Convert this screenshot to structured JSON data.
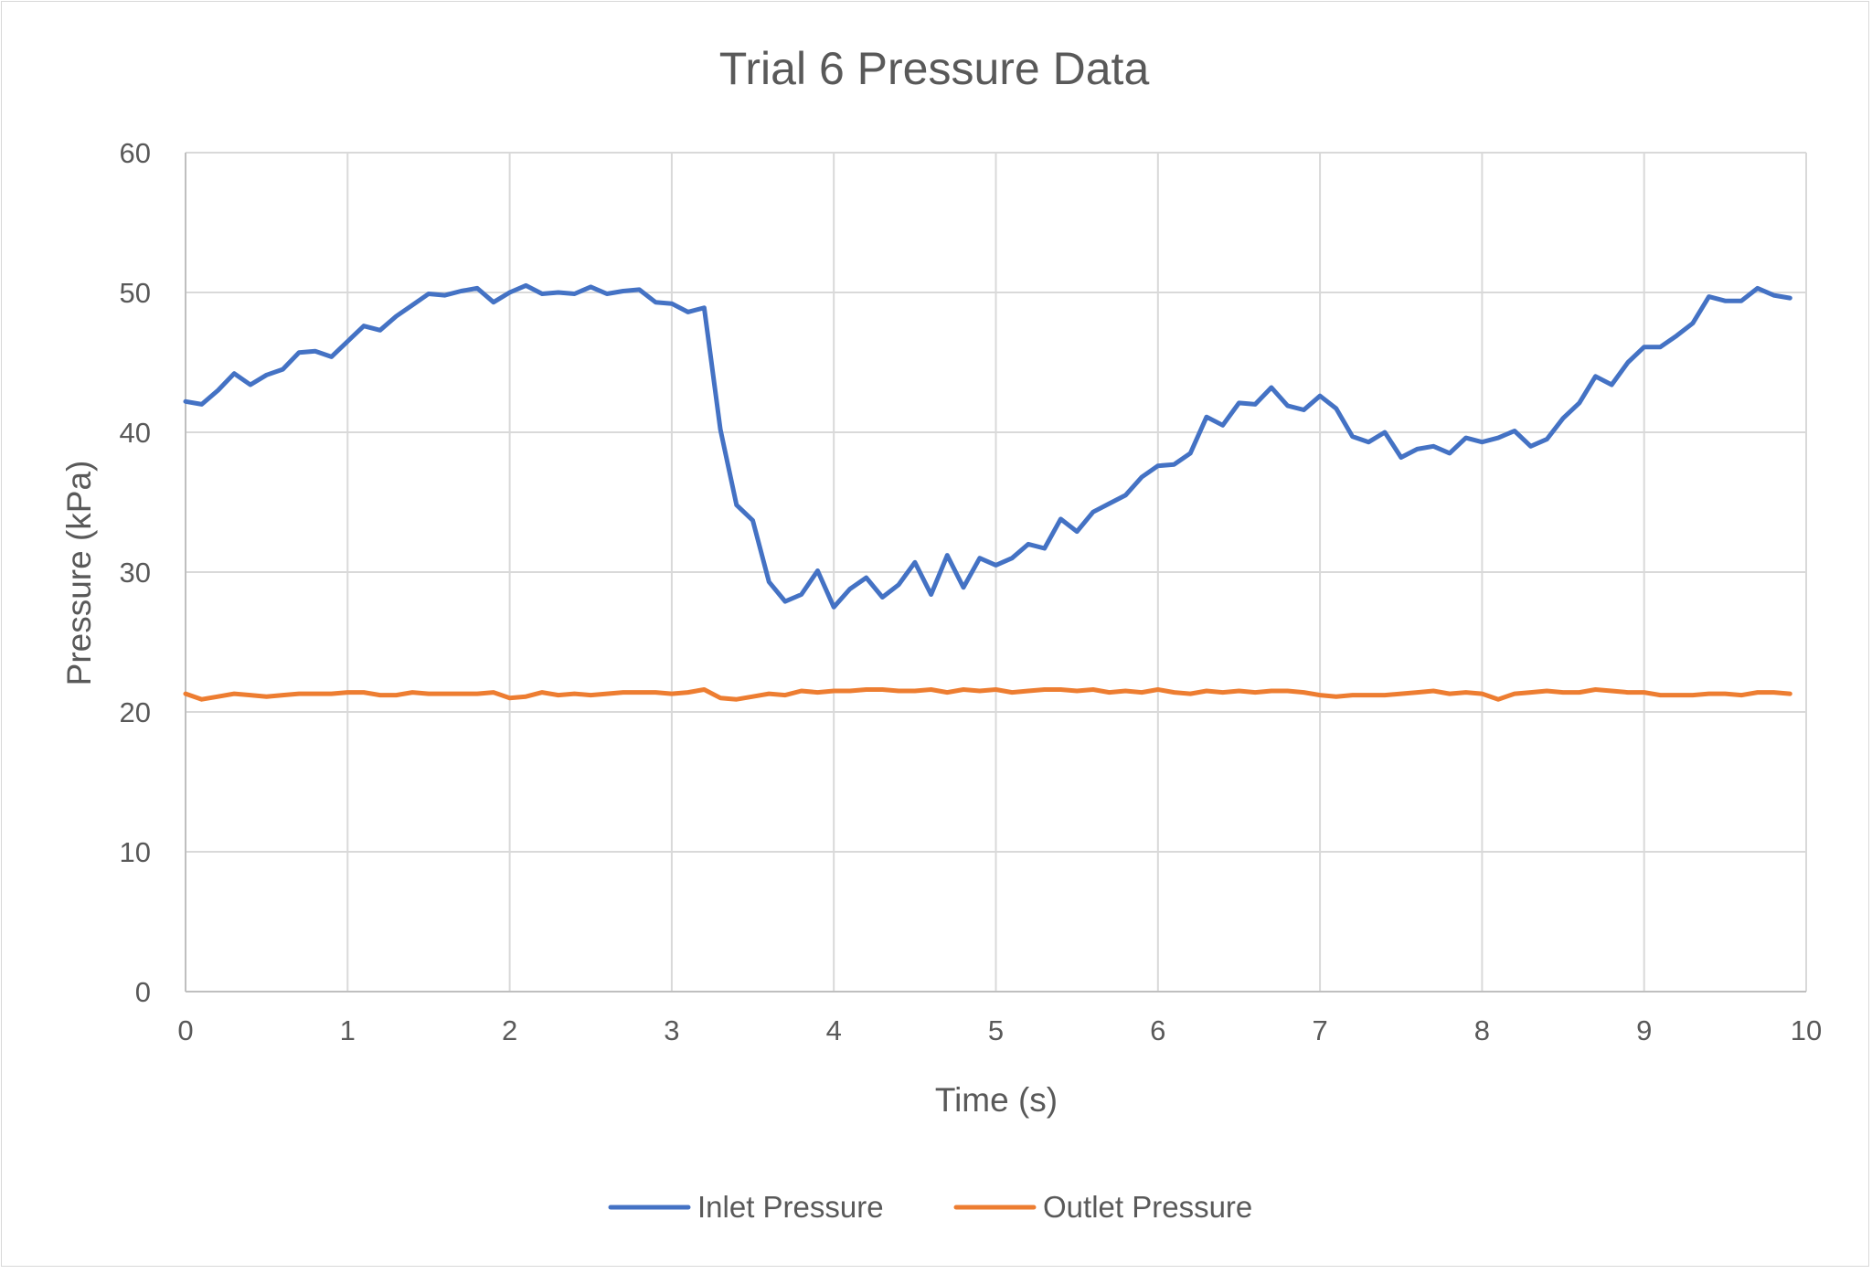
{
  "chart_data": {
    "type": "line",
    "title": "Trial 6 Pressure Data",
    "xlabel": "Time (s)",
    "ylabel": "Pressure (kPa)",
    "xlim": [
      0,
      10
    ],
    "ylim": [
      0,
      60
    ],
    "x_ticks": [
      "0",
      "1",
      "2",
      "3",
      "4",
      "5",
      "6",
      "7",
      "8",
      "9",
      "10"
    ],
    "y_ticks": [
      "0",
      "10",
      "20",
      "30",
      "40",
      "50",
      "60"
    ],
    "grid": true,
    "legend_position": "bottom",
    "x": [
      0,
      0.1,
      0.2,
      0.3,
      0.4,
      0.5,
      0.6,
      0.7,
      0.8,
      0.9,
      1,
      1.1,
      1.2,
      1.3,
      1.4,
      1.5,
      1.6,
      1.7,
      1.8,
      1.9,
      2,
      2.1,
      2.2,
      2.3,
      2.4,
      2.5,
      2.6,
      2.7,
      2.8,
      2.9,
      3,
      3.1,
      3.2,
      3.3,
      3.4,
      3.5,
      3.6,
      3.7,
      3.8,
      3.9,
      4,
      4.1,
      4.2,
      4.3,
      4.4,
      4.5,
      4.6,
      4.7,
      4.8,
      4.9,
      5,
      5.1,
      5.2,
      5.3,
      5.4,
      5.5,
      5.6,
      5.7,
      5.8,
      5.9,
      6,
      6.1,
      6.2,
      6.3,
      6.4,
      6.5,
      6.6,
      6.7,
      6.8,
      6.9,
      7,
      7.1,
      7.2,
      7.3,
      7.4,
      7.5,
      7.6,
      7.7,
      7.8,
      7.9,
      8,
      8.1,
      8.2,
      8.3,
      8.4,
      8.5,
      8.6,
      8.7,
      8.8,
      8.9,
      9,
      9.1,
      9.2,
      9.3,
      9.4,
      9.5,
      9.6,
      9.7,
      9.8,
      9.9
    ],
    "series": [
      {
        "name": "Inlet Pressure",
        "color": "#4472c4",
        "values": [
          42.2,
          42.0,
          43.0,
          44.2,
          43.4,
          44.1,
          44.5,
          45.7,
          45.8,
          45.4,
          46.5,
          47.6,
          47.3,
          48.3,
          49.1,
          49.9,
          49.8,
          50.1,
          50.3,
          49.3,
          50.0,
          50.5,
          49.9,
          50.0,
          49.9,
          50.4,
          49.9,
          50.1,
          50.2,
          49.3,
          49.2,
          48.6,
          48.9,
          40.2,
          34.8,
          33.7,
          29.3,
          27.9,
          28.4,
          30.1,
          27.5,
          28.8,
          29.6,
          28.2,
          29.1,
          30.7,
          28.4,
          31.2,
          28.9,
          31.0,
          30.5,
          31.0,
          32.0,
          31.7,
          33.8,
          32.9,
          34.3,
          34.9,
          35.5,
          36.8,
          37.6,
          37.7,
          38.5,
          41.1,
          40.5,
          42.1,
          42.0,
          43.2,
          41.9,
          41.6,
          42.6,
          41.7,
          39.7,
          39.3,
          40.0,
          38.2,
          38.8,
          39.0,
          38.5,
          39.6,
          39.3,
          39.6,
          40.1,
          39.0,
          39.5,
          41.0,
          42.1,
          44.0,
          43.4,
          45.0,
          46.1,
          46.1,
          46.9,
          47.8,
          49.7,
          49.4,
          49.4,
          50.3,
          49.8,
          49.6
        ]
      },
      {
        "name": "Outlet Pressure",
        "color": "#ed7d31",
        "values": [
          21.3,
          20.9,
          21.1,
          21.3,
          21.2,
          21.1,
          21.2,
          21.3,
          21.3,
          21.3,
          21.4,
          21.4,
          21.2,
          21.2,
          21.4,
          21.3,
          21.3,
          21.3,
          21.3,
          21.4,
          21.0,
          21.1,
          21.4,
          21.2,
          21.3,
          21.2,
          21.3,
          21.4,
          21.4,
          21.4,
          21.3,
          21.4,
          21.6,
          21.0,
          20.9,
          21.1,
          21.3,
          21.2,
          21.5,
          21.4,
          21.5,
          21.5,
          21.6,
          21.6,
          21.5,
          21.5,
          21.6,
          21.4,
          21.6,
          21.5,
          21.6,
          21.4,
          21.5,
          21.6,
          21.6,
          21.5,
          21.6,
          21.4,
          21.5,
          21.4,
          21.6,
          21.4,
          21.3,
          21.5,
          21.4,
          21.5,
          21.4,
          21.5,
          21.5,
          21.4,
          21.2,
          21.1,
          21.2,
          21.2,
          21.2,
          21.3,
          21.4,
          21.5,
          21.3,
          21.4,
          21.3,
          20.9,
          21.3,
          21.4,
          21.5,
          21.4,
          21.4,
          21.6,
          21.5,
          21.4,
          21.4,
          21.2,
          21.2,
          21.2,
          21.3,
          21.3,
          21.2,
          21.4,
          21.4,
          21.3
        ]
      }
    ]
  }
}
